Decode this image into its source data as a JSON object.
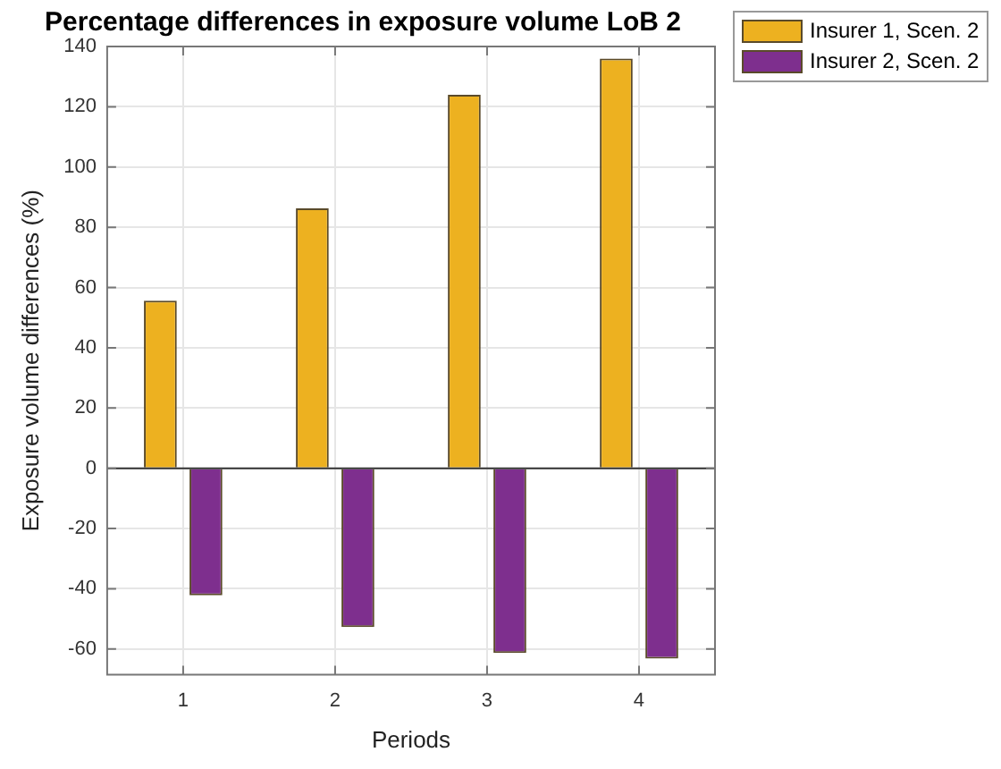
{
  "chart_data": {
    "type": "bar",
    "title": "Percentage differences in exposure volume LoB 2",
    "xlabel": "Periods",
    "ylabel": "Exposure volume differences (%)",
    "categories": [
      "1",
      "2",
      "3",
      "4"
    ],
    "series": [
      {
        "name": "Insurer 1, Scen. 2",
        "color": "#edb120",
        "values": [
          55.6,
          86.3,
          124,
          136
        ]
      },
      {
        "name": "Insurer 2, Scen. 2",
        "color": "#7e2f8e",
        "values": [
          -42.2,
          -52.7,
          -61.3,
          -63.2
        ]
      }
    ],
    "ylim": [
      -68.5,
      140
    ],
    "yticks": [
      -60,
      -40,
      -20,
      0,
      20,
      40,
      60,
      80,
      100,
      120,
      140
    ],
    "grid": true,
    "legend": "top right"
  }
}
